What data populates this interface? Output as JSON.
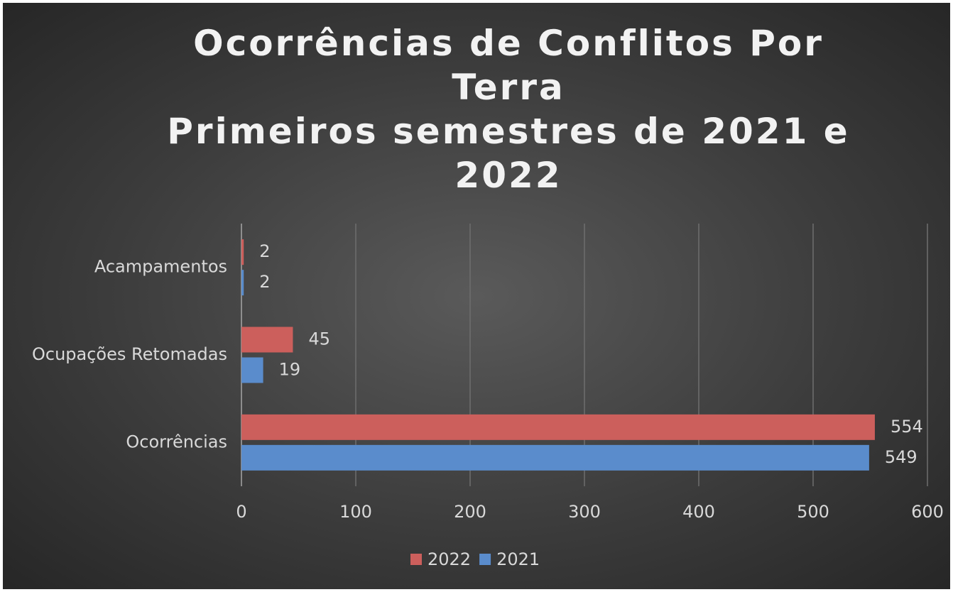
{
  "chart_data": {
    "type": "bar",
    "orientation": "horizontal",
    "title": "Ocorrências de Conflitos Por Terra",
    "subtitle": "Primeiros semestres de 2021 e 2022",
    "categories": [
      "Ocorrências",
      "Ocupações Retomadas",
      "Acampamentos"
    ],
    "series": [
      {
        "name": "2022",
        "color": "#cc5f5c",
        "values": [
          554,
          45,
          2
        ]
      },
      {
        "name": "2021",
        "color": "#5a8ccc",
        "values": [
          549,
          19,
          2
        ]
      }
    ],
    "xlim": [
      0,
      600
    ],
    "xticks": [
      0,
      100,
      200,
      300,
      400,
      500,
      600
    ],
    "grid": true,
    "legend": "bottom"
  }
}
